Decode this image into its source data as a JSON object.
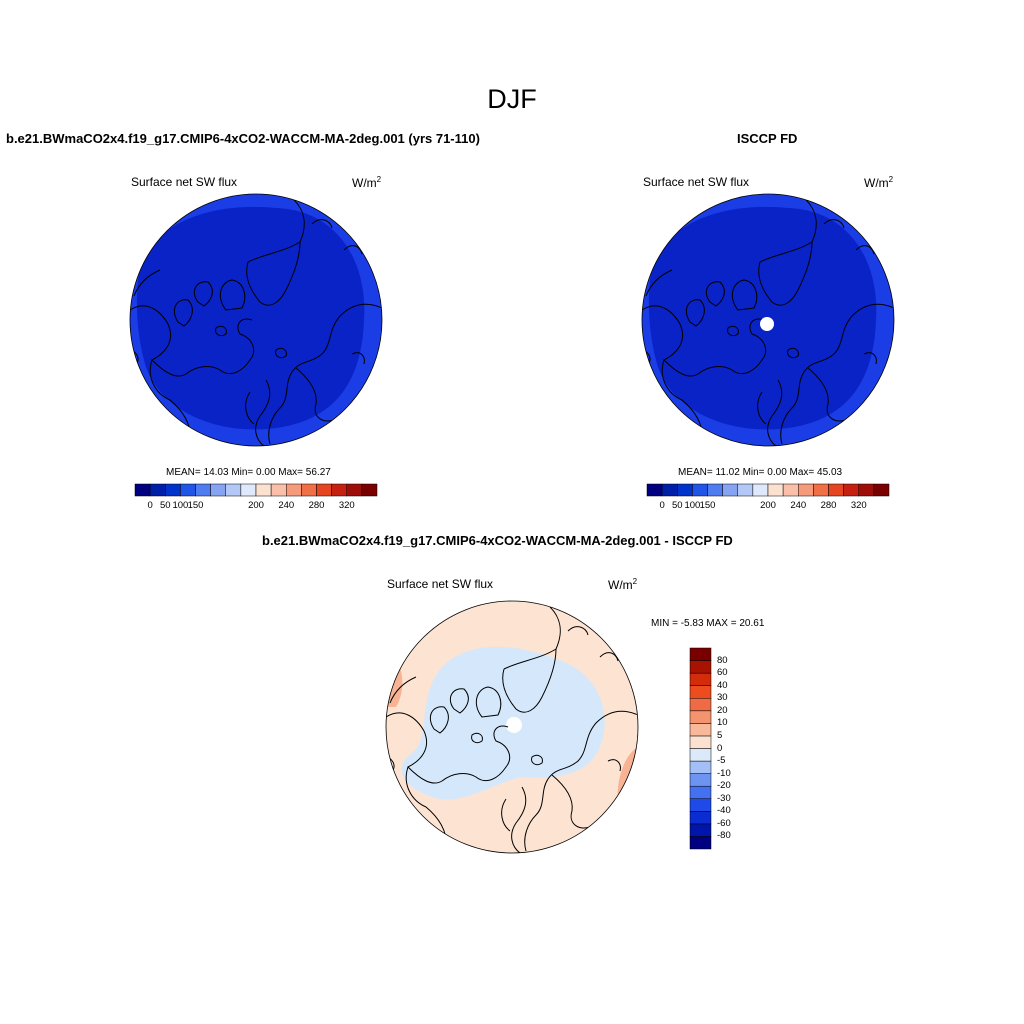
{
  "page": {
    "title": "DJF"
  },
  "panels": [
    {
      "title": "b.e21.BWmaCO2x4.f19_g17.CMIP6-4xCO2-WACCM-MA-2deg.001 (yrs 71-110)",
      "variable": "Surface net SW flux",
      "units_base": "W/m",
      "units_exp": "2",
      "stats": "MEAN=  14.03  Min=   0.00  Max=  56.27",
      "colorbar": {
        "colors": [
          "#000080",
          "#001fa8",
          "#0032cc",
          "#2155e6",
          "#4f7cf0",
          "#86a4f2",
          "#b4c8f5",
          "#dfe9fb",
          "#fce0d0",
          "#f9bfa8",
          "#f59a7a",
          "#f06f47",
          "#e54521",
          "#c62010",
          "#9e0d07",
          "#7a0000"
        ],
        "labels": [
          "0",
          "50",
          "100",
          "150",
          "200",
          "240",
          "280",
          "320"
        ]
      },
      "map": {
        "outer_color": "#1a3de6",
        "inner_color": "#0a23c6",
        "pole_hole": false
      }
    },
    {
      "title": "ISCCP FD",
      "variable": "Surface net SW flux",
      "units_base": "W/m",
      "units_exp": "2",
      "stats": "MEAN=  11.02  Min=   0.00  Max=  45.03",
      "colorbar": {
        "colors": [
          "#000080",
          "#001fa8",
          "#0032cc",
          "#2155e6",
          "#4f7cf0",
          "#86a4f2",
          "#b4c8f5",
          "#dfe9fb",
          "#fce0d0",
          "#f9bfa8",
          "#f59a7a",
          "#f06f47",
          "#e54521",
          "#c62010",
          "#9e0d07",
          "#7a0000"
        ],
        "labels": [
          "0",
          "50",
          "100",
          "150",
          "200",
          "240",
          "280",
          "320"
        ]
      },
      "map": {
        "outer_color": "#1a3de6",
        "inner_color": "#0a23c6",
        "pole_hole": true
      }
    }
  ],
  "diff": {
    "title": "b.e21.BWmaCO2x4.f19_g17.CMIP6-4xCO2-WACCM-MA-2deg.001 - ISCCP FD",
    "variable": "Surface net SW flux",
    "units_base": "W/m",
    "units_exp": "2",
    "stats": "MIN =  -5.83 MAX =  20.61",
    "colorbar": {
      "colors": [
        "#000080",
        "#0015aa",
        "#0a2cd0",
        "#1f4ae8",
        "#4470f2",
        "#6e94f2",
        "#a3bff5",
        "#dbe9fb",
        "#fce0d0",
        "#f8b99b",
        "#f4946f",
        "#f06b45",
        "#ec4c1e",
        "#d22c0a",
        "#a81200",
        "#7a0000"
      ],
      "labels": [
        "80",
        "60",
        "40",
        "30",
        "20",
        "10",
        "5",
        "0",
        "-5",
        "-10",
        "-20",
        "-30",
        "-40",
        "-60",
        "-80"
      ]
    },
    "map": {
      "base_color": "#fde3d2",
      "ice_color": "#d5e8fb",
      "warm_color": "#f7b394"
    }
  }
}
